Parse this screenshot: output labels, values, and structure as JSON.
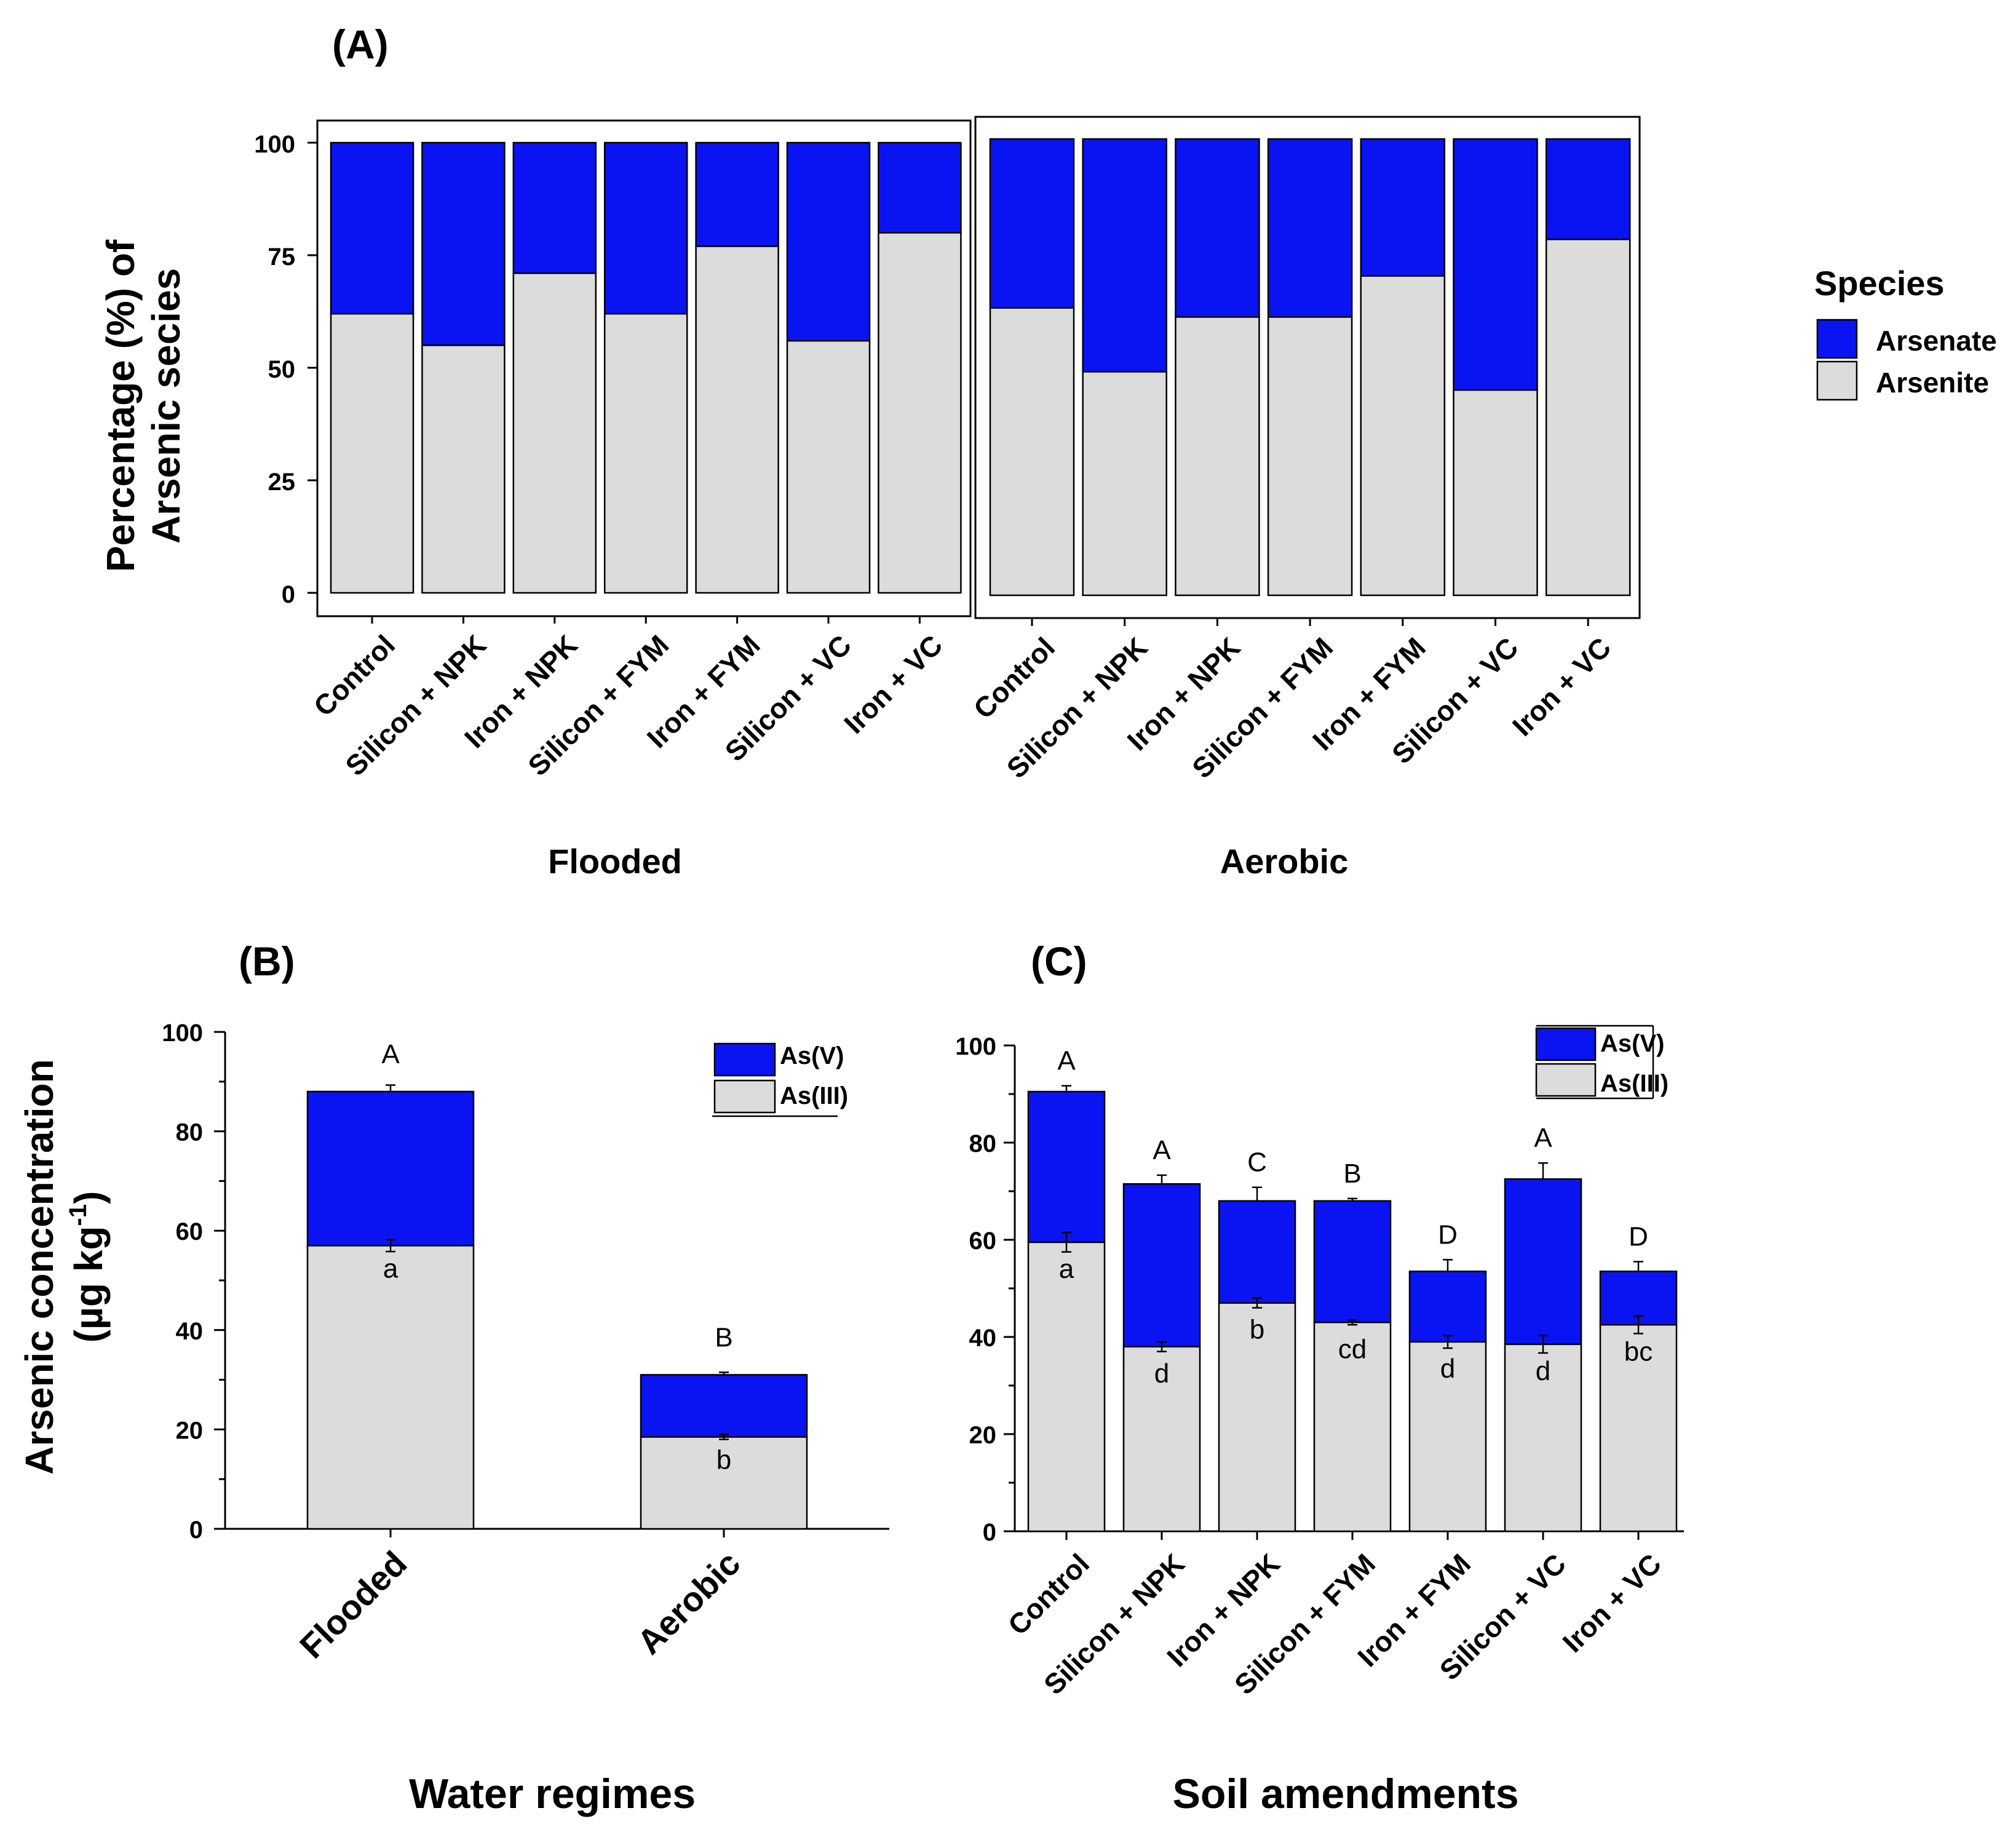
{
  "colors": {
    "as_v": "#0a14f2",
    "as_iii": "#dcdcdc"
  },
  "panel_a": {
    "label": "(A)",
    "ylabel_line1": "Percentage (%) of",
    "ylabel_line2": "Arsenic secies",
    "legend_title": "Species",
    "legend": [
      "Arsenate",
      "Arsenite"
    ]
  },
  "panel_b": {
    "label": "(B)",
    "ylabel_line1": "Arsenic concentration",
    "ylabel_line2_text": "(µg kg",
    "ylabel_line2_sup": "-1",
    "ylabel_line2_end": ")",
    "xlabel": "Water regimes",
    "legend": [
      "As(V)",
      "As(III)"
    ]
  },
  "panel_c": {
    "label": "(C)",
    "xlabel": "Soil amendments",
    "legend": [
      "As(V)",
      "As(III)"
    ]
  },
  "chart_data": [
    {
      "id": "A",
      "type": "bar",
      "stacked": "percent",
      "title": "(A)",
      "ylabel": "Percentage (%) of Arsenic secies",
      "ylim": [
        0,
        100
      ],
      "yticks": [
        0,
        25,
        50,
        75,
        100
      ],
      "legend_title": "Species",
      "facets": [
        {
          "name": "Flooded",
          "categories": [
            "Control",
            "Silicon + NPK",
            "Iron + NPK",
            "Silicon + FYM",
            "Iron + FYM",
            "Silicon + VC",
            "Iron + VC"
          ],
          "series": [
            {
              "name": "Arsenite",
              "values": [
                62,
                55,
                71,
                62,
                77,
                56,
                80
              ]
            },
            {
              "name": "Arsenate",
              "values": [
                38,
                45,
                29,
                38,
                23,
                44,
                20
              ]
            }
          ]
        },
        {
          "name": "Aerobic",
          "categories": [
            "Control",
            "Silicon + NPK",
            "Iron + NPK",
            "Silicon + FYM",
            "Iron + FYM",
            "Silicon + VC",
            "Iron + VC"
          ],
          "series": [
            {
              "name": "Arsenite",
              "values": [
                63,
                49,
                61,
                61,
                70,
                45,
                78
              ]
            },
            {
              "name": "Arsenate",
              "values": [
                37,
                51,
                39,
                39,
                30,
                55,
                22
              ]
            }
          ]
        }
      ]
    },
    {
      "id": "B",
      "type": "bar",
      "stacked": true,
      "title": "(B)",
      "xlabel": "Water regimes",
      "ylabel": "Arsenic concentration (µg kg-1)",
      "ylim": [
        0,
        100
      ],
      "yticks": [
        0,
        20,
        40,
        60,
        80,
        100
      ],
      "categories": [
        "Flooded",
        "Aerobic"
      ],
      "series": [
        {
          "name": "As(III)",
          "values": [
            57,
            18.5
          ],
          "errors": [
            1.2,
            0.5
          ],
          "letters": [
            "a",
            "b"
          ]
        },
        {
          "name": "As(V)",
          "values": [
            31,
            12.5
          ],
          "errors": [
            1.3,
            0.5
          ]
        }
      ],
      "total_letters": [
        "A",
        "B"
      ]
    },
    {
      "id": "C",
      "type": "bar",
      "stacked": true,
      "title": "(C)",
      "xlabel": "Soil amendments",
      "ylim": [
        0,
        100
      ],
      "yticks": [
        0,
        20,
        40,
        60,
        80,
        100
      ],
      "categories": [
        "Control",
        "Silicon + NPK",
        "Iron + NPK",
        "Silicon + FYM",
        "Iron + FYM",
        "Silicon + VC",
        "Iron + VC"
      ],
      "series": [
        {
          "name": "As(III)",
          "values": [
            59.5,
            38,
            47,
            43,
            39,
            38.5,
            42.5
          ],
          "errors": [
            2,
            1,
            1,
            0.5,
            1.3,
            1.8,
            1.8
          ],
          "letters": [
            "a",
            "d",
            "b",
            "cd",
            "d",
            "d",
            "bc"
          ]
        },
        {
          "name": "As(V)",
          "values": [
            31,
            33.5,
            21,
            25,
            14.5,
            34,
            11
          ],
          "errors": [
            1.2,
            1.8,
            2.8,
            0.5,
            2.4,
            3.3,
            2
          ]
        }
      ],
      "total_letters": [
        "A",
        "A",
        "C",
        "B",
        "D",
        "A",
        "D"
      ]
    }
  ]
}
